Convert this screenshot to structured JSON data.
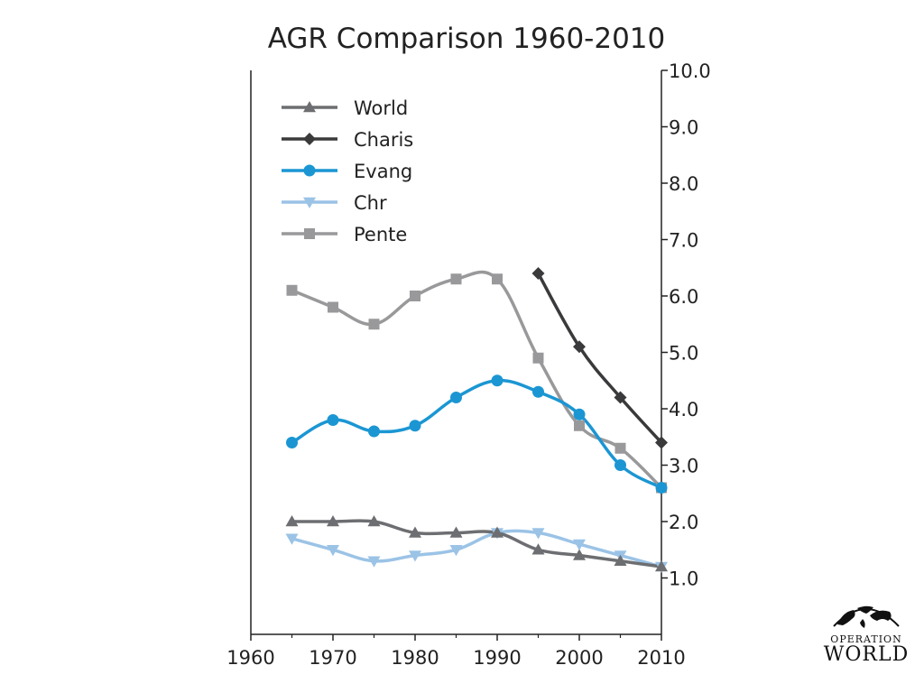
{
  "chart_data": {
    "type": "line",
    "title": "AGR Comparison 1960-2010",
    "xlabel": "",
    "ylabel": "",
    "xlim": [
      1960,
      2010
    ],
    "ylim": [
      0,
      10
    ],
    "x_ticks": [
      "1960",
      "1970",
      "1980",
      "1990",
      "2000",
      "2010"
    ],
    "y_ticks": [
      "1.0",
      "2.0",
      "3.0",
      "4.0",
      "5.0",
      "6.0",
      "7.0",
      "8.0",
      "9.0",
      "10.0"
    ],
    "y_axis_side": "right",
    "grid": false,
    "legend_position": "top-left",
    "series": [
      {
        "name": "World",
        "color": "#6d6e71",
        "marker": "triangle-up",
        "x": [
          1965,
          1970,
          1975,
          1980,
          1985,
          1990,
          1995,
          2000,
          2005,
          2010
        ],
        "y": [
          2.0,
          2.0,
          2.0,
          1.8,
          1.8,
          1.8,
          1.5,
          1.4,
          1.3,
          1.2
        ]
      },
      {
        "name": "Charis",
        "color": "#3a3a3c",
        "marker": "diamond",
        "x": [
          1995,
          2000,
          2005,
          2010
        ],
        "y": [
          6.4,
          5.1,
          4.2,
          3.4
        ]
      },
      {
        "name": "Evang",
        "color": "#1b96d3",
        "marker": "circle",
        "x": [
          1965,
          1970,
          1975,
          1980,
          1985,
          1990,
          1995,
          2000,
          2005,
          2010
        ],
        "y": [
          3.4,
          3.8,
          3.6,
          3.7,
          4.2,
          4.5,
          4.3,
          3.9,
          3.0,
          2.6
        ]
      },
      {
        "name": "Chr",
        "color": "#9bc3e6",
        "marker": "triangle-down",
        "x": [
          1965,
          1970,
          1975,
          1980,
          1985,
          1990,
          1995,
          2000,
          2005,
          2010
        ],
        "y": [
          1.7,
          1.5,
          1.3,
          1.4,
          1.5,
          1.8,
          1.8,
          1.6,
          1.4,
          1.2
        ]
      },
      {
        "name": "Pente",
        "color": "#99999b",
        "marker": "square",
        "x": [
          1965,
          1970,
          1975,
          1980,
          1985,
          1990,
          1995,
          2000,
          2005,
          2010
        ],
        "y": [
          6.1,
          5.8,
          5.5,
          6.0,
          6.3,
          6.3,
          4.9,
          3.7,
          3.3,
          2.6
        ]
      }
    ]
  },
  "logo": {
    "line1": "OPERATION",
    "line2": "WORLD"
  }
}
